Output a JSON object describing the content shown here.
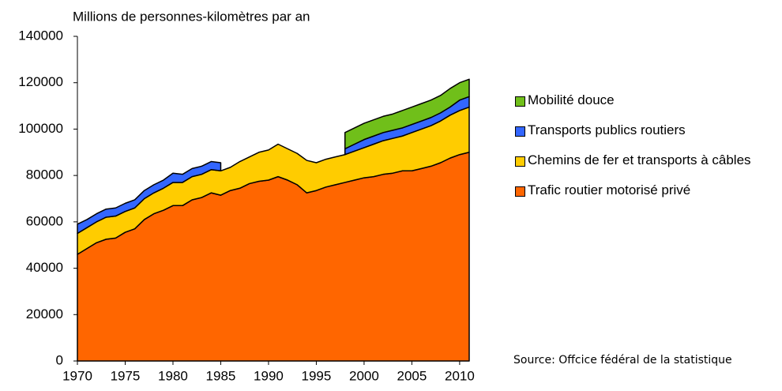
{
  "chart_data": {
    "type": "stacked-area",
    "y_label": "Millions de personnes-kilomètres par an",
    "annotation": "Source: Offcice fédéral de la statistique",
    "x": [
      1970,
      1971,
      1972,
      1973,
      1974,
      1975,
      1976,
      1977,
      1978,
      1979,
      1980,
      1981,
      1982,
      1983,
      1984,
      1985,
      1986,
      1987,
      1988,
      1989,
      1990,
      1991,
      1992,
      1993,
      1994,
      1995,
      1996,
      1997,
      1998,
      1999,
      2000,
      2001,
      2002,
      2003,
      2004,
      2005,
      2006,
      2007,
      2008,
      2009,
      2010,
      2011
    ],
    "xlim": [
      1970,
      2011
    ],
    "xticks": [
      1970,
      1975,
      1980,
      1985,
      1990,
      1995,
      2000,
      2005,
      2010
    ],
    "ylim": [
      0,
      140000
    ],
    "yticks": [
      0,
      20000,
      40000,
      60000,
      80000,
      100000,
      120000,
      140000
    ],
    "series": [
      {
        "name": "Trafic routier motorisé privé",
        "color": "#ff6600",
        "values": [
          46000,
          48500,
          51000,
          52500,
          53000,
          55500,
          57000,
          61000,
          63500,
          65000,
          67000,
          67000,
          69500,
          70500,
          72500,
          71500,
          73500,
          74500,
          76500,
          77500,
          78000,
          79500,
          78000,
          76000,
          72500,
          73500,
          75000,
          76000,
          77000,
          78000,
          79000,
          79500,
          80500,
          81000,
          82000,
          82000,
          83000,
          84000,
          85500,
          87500,
          89000,
          90000
        ]
      },
      {
        "name": "Chemins de fer et transports à câbles",
        "color": "#ffcc00",
        "values": [
          9000,
          9000,
          9000,
          9500,
          9500,
          9000,
          9000,
          9000,
          9000,
          9500,
          10000,
          10000,
          10000,
          10000,
          10000,
          10500,
          10000,
          11500,
          11500,
          12500,
          13000,
          14000,
          13500,
          13500,
          14000,
          12000,
          12000,
          12000,
          12000,
          12500,
          13000,
          14000,
          14500,
          15000,
          15000,
          16500,
          17000,
          17500,
          18000,
          18500,
          19000,
          19500
        ]
      },
      {
        "name": "Transports publics routiers",
        "color": "#3366ff",
        "values": [
          4000,
          3500,
          3500,
          3500,
          3500,
          3500,
          3500,
          3500,
          3500,
          3500,
          4000,
          3500,
          3500,
          3500,
          3500,
          3500,
          null,
          null,
          null,
          null,
          null,
          null,
          null,
          null,
          null,
          null,
          null,
          null,
          2500,
          3000,
          3500,
          3500,
          3500,
          3500,
          3500,
          3500,
          3500,
          3500,
          3500,
          3500,
          4500,
          4500
        ]
      },
      {
        "name": "Mobilité douce",
        "color": "#70bf1a",
        "values": [
          null,
          null,
          null,
          null,
          null,
          null,
          null,
          null,
          null,
          null,
          null,
          null,
          null,
          null,
          null,
          null,
          null,
          null,
          null,
          null,
          null,
          null,
          null,
          null,
          null,
          null,
          null,
          null,
          7000,
          7000,
          7000,
          7000,
          7000,
          7000,
          7500,
          7500,
          7500,
          7500,
          7500,
          8000,
          7500,
          7500
        ]
      }
    ]
  }
}
